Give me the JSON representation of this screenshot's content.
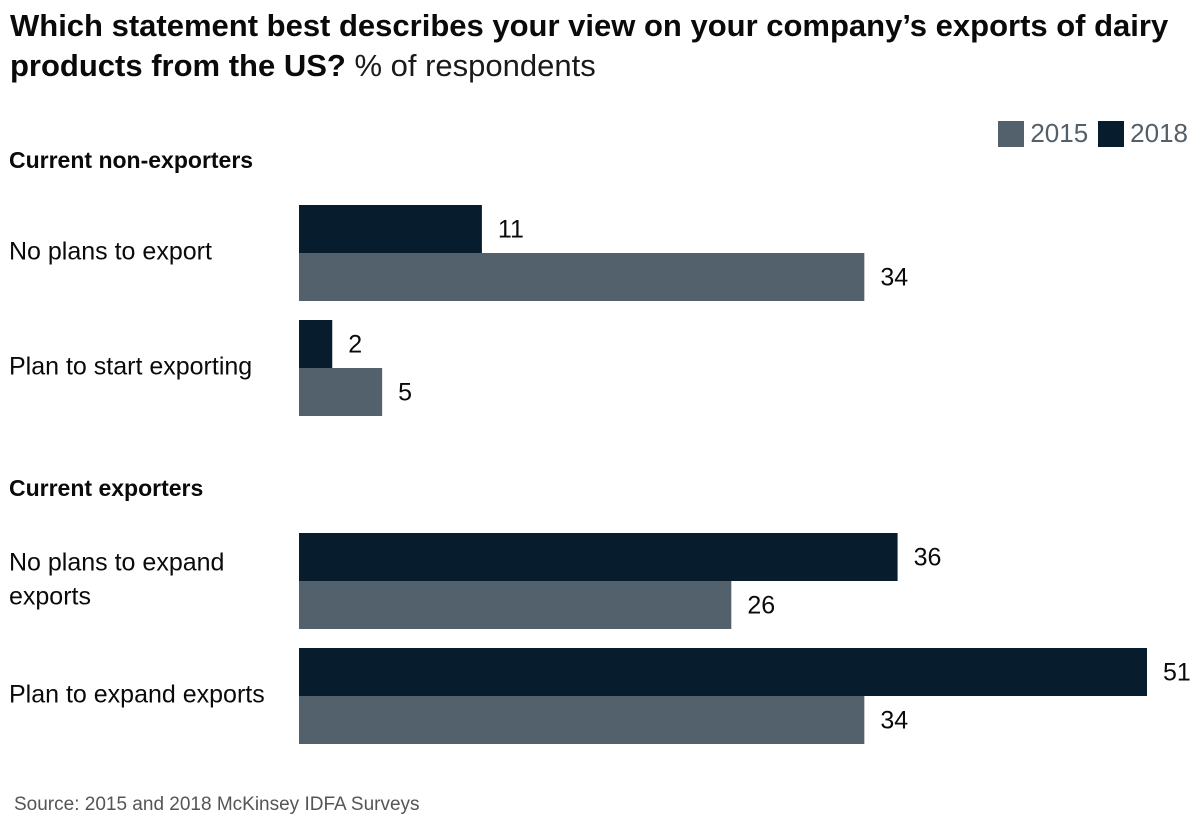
{
  "title": {
    "bold": "Which statement best describes your view on your company’s exports of dairy products from the US?",
    "unit": "% of respondents"
  },
  "legend": [
    {
      "label": "2015",
      "color": "#52616b"
    },
    {
      "label": "2018",
      "color": "#071c2c"
    }
  ],
  "source": "Source: 2015 and 2018 McKinsey IDFA Surveys",
  "chart_data": {
    "type": "bar",
    "orientation": "horizontal",
    "groups": [
      {
        "name": "Current non-exporters",
        "categories": [
          {
            "label": [
              "No plans to export"
            ],
            "values": {
              "2018": 11,
              "2015": 34
            }
          },
          {
            "label": [
              "Plan to start exporting"
            ],
            "values": {
              "2018": 2,
              "2015": 5
            }
          }
        ]
      },
      {
        "name": "Current exporters",
        "categories": [
          {
            "label": [
              "No plans to expand",
              "exports"
            ],
            "values": {
              "2018": 36,
              "2015": 26
            }
          },
          {
            "label": [
              "Plan to expand exports"
            ],
            "values": {
              "2018": 51,
              "2015": 34
            }
          }
        ]
      }
    ],
    "series": [
      {
        "name": "2018",
        "color": "#071c2c"
      },
      {
        "name": "2015",
        "color": "#52616b"
      }
    ],
    "xlim": [
      0,
      51
    ],
    "grid": false,
    "legend_position": "top-right"
  }
}
